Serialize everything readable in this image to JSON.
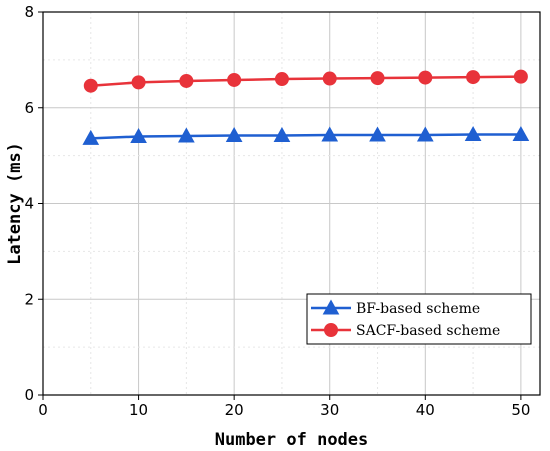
{
  "chart_data": {
    "type": "line",
    "xlabel": "Number of nodes",
    "ylabel": "Latency (ms)",
    "xlim": [
      0,
      52
    ],
    "ylim": [
      0,
      8
    ],
    "x_ticks": [
      0,
      10,
      20,
      30,
      40,
      50
    ],
    "y_ticks": [
      0,
      2,
      4,
      6,
      8
    ],
    "grid": true,
    "legend_position": "lower-right",
    "x": [
      5,
      10,
      15,
      20,
      25,
      30,
      35,
      40,
      45,
      50
    ],
    "series": [
      {
        "name": "BF-based scheme",
        "color": "#1f5fd1",
        "marker": "triangle",
        "values": [
          5.36,
          5.4,
          5.41,
          5.42,
          5.42,
          5.43,
          5.43,
          5.43,
          5.44,
          5.44
        ]
      },
      {
        "name": "SACF-based scheme",
        "color": "#e8333a",
        "marker": "circle",
        "values": [
          6.46,
          6.53,
          6.56,
          6.58,
          6.6,
          6.61,
          6.62,
          6.63,
          6.64,
          6.65
        ]
      }
    ]
  }
}
